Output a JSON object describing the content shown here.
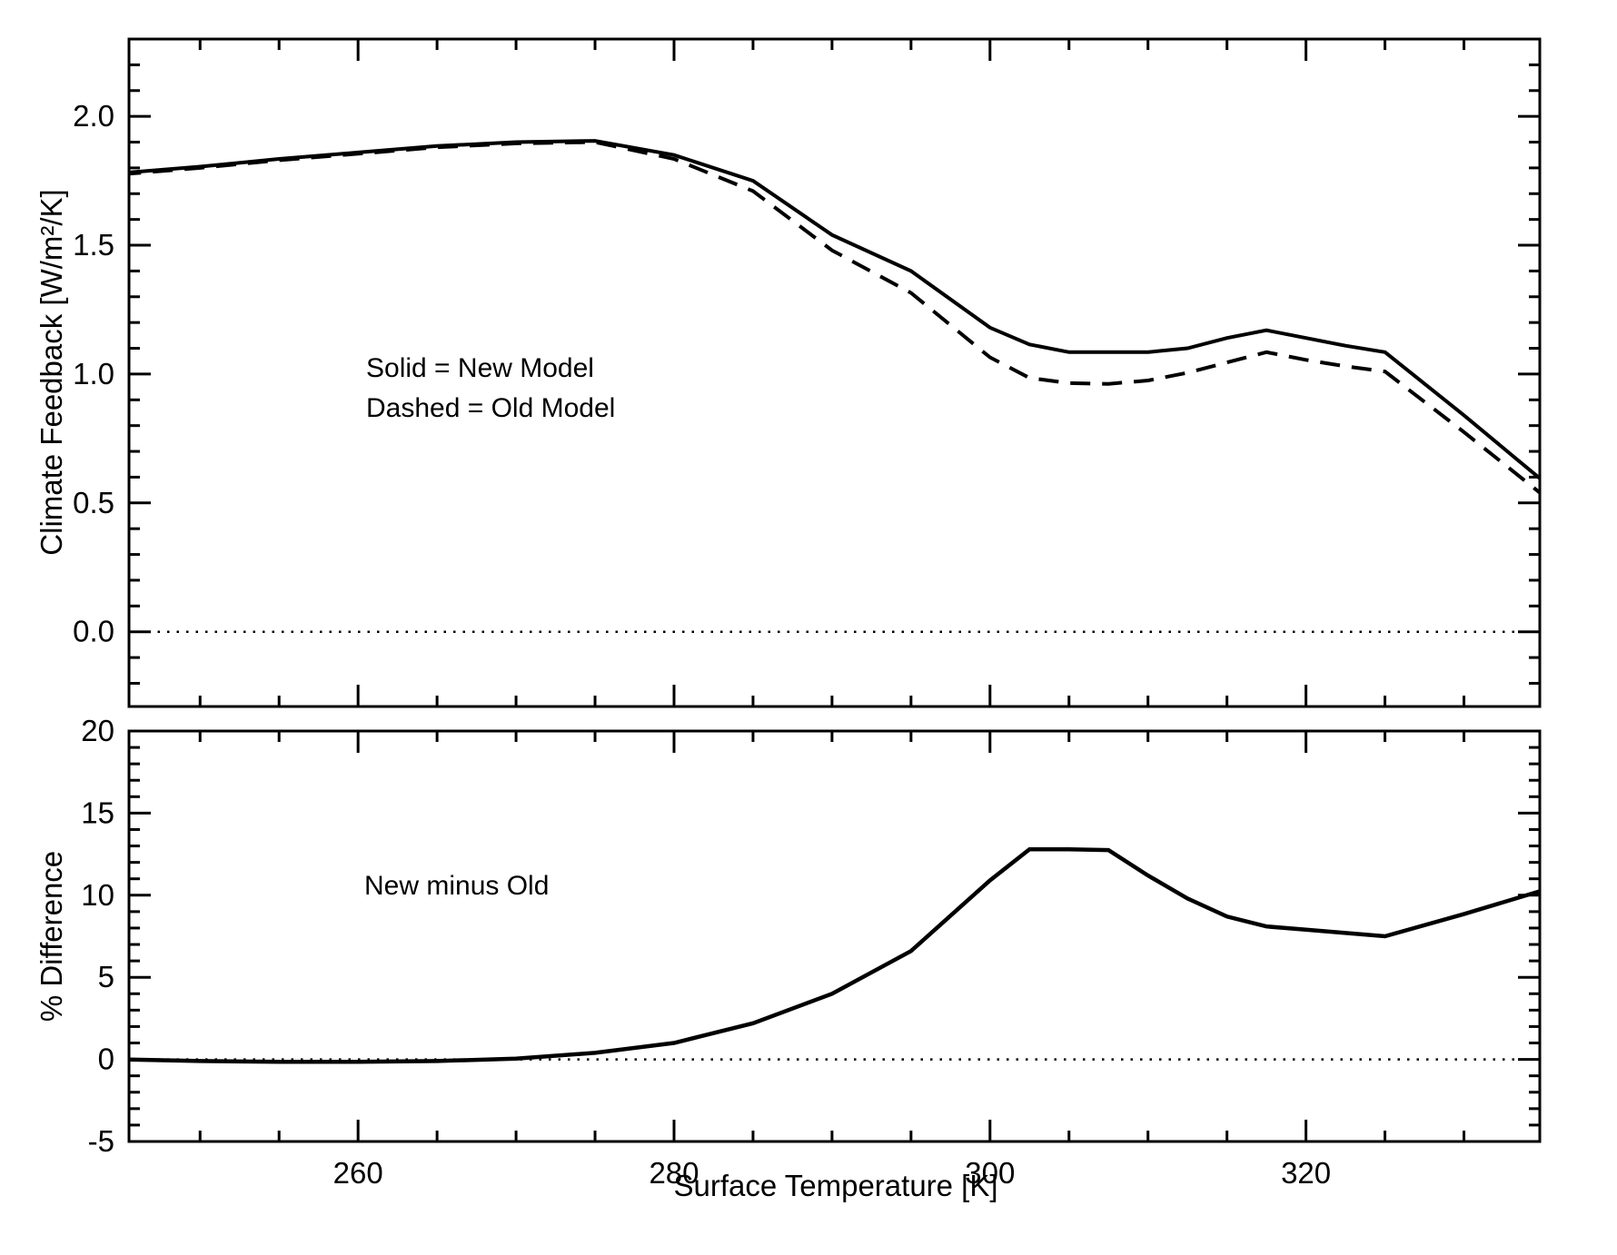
{
  "page": {
    "background": "#ffffff",
    "ink": "#000000"
  },
  "labels": {
    "top_ylabel": "Climate Feedback [W/m²/K]",
    "bottom_ylabel": "% Difference",
    "xlabel": "Surface Temperature [K]",
    "legend_solid": "Solid = New Model",
    "legend_dashed": "Dashed = Old Model",
    "bottom_annotation": "New minus Old"
  },
  "chart_data": [
    {
      "type": "line",
      "panel": "top",
      "title": "",
      "xlabel": "",
      "ylabel": "Climate Feedback [W/m²/K]",
      "xlim": [
        245.5,
        334.8
      ],
      "ylim": [
        -0.29,
        2.3
      ],
      "grid": false,
      "zero_line_dotted": true,
      "annotations": [
        "Solid = New Model",
        "Dashed = Old Model"
      ],
      "x": [
        245,
        250,
        255,
        260,
        265,
        270,
        275,
        280,
        285,
        290,
        295,
        300,
        302.5,
        305,
        307.5,
        310,
        312.5,
        315,
        317.5,
        320,
        322.5,
        325,
        330,
        335
      ],
      "series": [
        {
          "name": "New Model",
          "style": "solid",
          "values": [
            1.78,
            1.805,
            1.835,
            1.86,
            1.885,
            1.9,
            1.905,
            1.85,
            1.75,
            1.54,
            1.4,
            1.18,
            1.115,
            1.085,
            1.085,
            1.085,
            1.1,
            1.14,
            1.17,
            1.14,
            1.11,
            1.085,
            0.84,
            0.585
          ]
        },
        {
          "name": "Old Model",
          "style": "dashed",
          "values": [
            1.775,
            1.8,
            1.83,
            1.855,
            1.88,
            1.895,
            1.9,
            1.835,
            1.71,
            1.48,
            1.315,
            1.065,
            0.985,
            0.965,
            0.962,
            0.975,
            1.005,
            1.045,
            1.085,
            1.055,
            1.03,
            1.01,
            0.775,
            0.53
          ]
        }
      ],
      "x_major_ticks": [
        260,
        280,
        300,
        320
      ],
      "x_tick_labels": [],
      "x_minor_step": 5,
      "y_major_ticks": [
        0.0,
        0.5,
        1.0,
        1.5,
        2.0
      ],
      "y_tick_labels": [
        "0.0",
        "0.5",
        "1.0",
        "1.5",
        "2.0"
      ],
      "y_minor_step": 0.1
    },
    {
      "type": "line",
      "panel": "bottom",
      "title": "",
      "xlabel": "Surface Temperature [K]",
      "ylabel": "% Difference",
      "xlim": [
        245.5,
        334.8
      ],
      "ylim": [
        -5,
        20
      ],
      "grid": false,
      "zero_line_dotted": true,
      "annotations": [
        "New minus Old"
      ],
      "x": [
        245,
        250,
        255,
        260,
        265,
        270,
        275,
        280,
        285,
        290,
        295,
        300,
        302.5,
        305,
        307.5,
        310,
        312.5,
        315,
        317.5,
        320,
        322.5,
        325,
        330,
        335
      ],
      "series": [
        {
          "name": "New minus Old (%)",
          "style": "solid",
          "values": [
            0.0,
            -0.1,
            -0.15,
            -0.15,
            -0.1,
            0.05,
            0.4,
            1.0,
            2.2,
            4.0,
            6.6,
            10.9,
            12.8,
            12.8,
            12.75,
            11.2,
            9.8,
            8.7,
            8.1,
            7.9,
            7.7,
            7.5,
            8.85,
            10.3
          ]
        }
      ],
      "x_major_ticks": [
        260,
        280,
        300,
        320
      ],
      "x_tick_labels": [
        "260",
        "280",
        "300",
        "320"
      ],
      "x_minor_step": 5,
      "y_major_ticks": [
        -5,
        0,
        5,
        10,
        15,
        20
      ],
      "y_tick_labels": [
        "-5",
        "0",
        "5",
        "10",
        "15",
        "20"
      ],
      "y_minor_step": 1
    }
  ]
}
